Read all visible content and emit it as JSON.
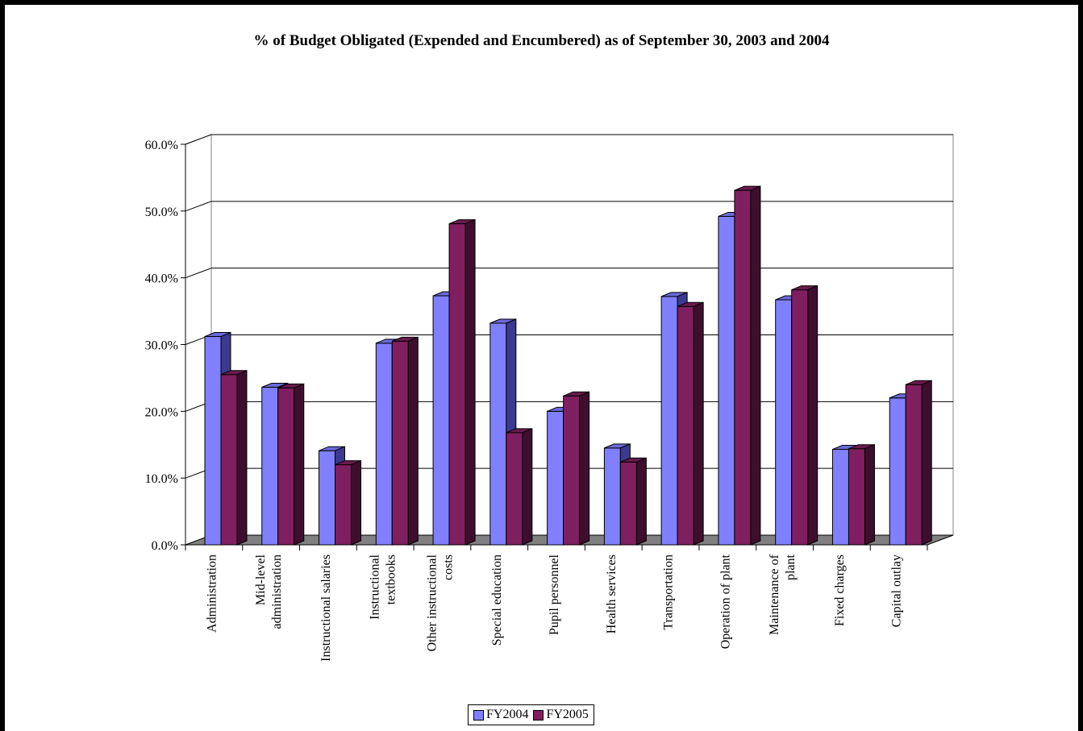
{
  "chart_data": {
    "type": "bar",
    "title": "% of Budget Obligated (Expended and Encumbered) as of September 30, 2003 and 2004",
    "xlabel": "",
    "ylabel": "",
    "ylim": [
      0,
      60
    ],
    "y_ticks": [
      "0.0%",
      "10.0%",
      "20.0%",
      "30.0%",
      "40.0%",
      "50.0%",
      "60.0%"
    ],
    "grid": true,
    "legend_position": "bottom",
    "categories": [
      [
        "Administration"
      ],
      [
        "Mid-level",
        "administration"
      ],
      [
        "Instructional salaries"
      ],
      [
        "Instructional",
        "textbooks"
      ],
      [
        "Other instructional",
        "costs"
      ],
      [
        "Special education"
      ],
      [
        "Pupil personnel"
      ],
      [
        "Health services"
      ],
      [
        "Transportation"
      ],
      [
        "Operation of plant"
      ],
      [
        "Maintenance of",
        "plant"
      ],
      [
        "Fixed charges"
      ],
      [
        "Capital outlay"
      ]
    ],
    "series": [
      {
        "name": "FY2004",
        "color": "#8080ff",
        "values": [
          31.2,
          23.6,
          14.1,
          30.2,
          37.3,
          33.2,
          20.0,
          14.5,
          37.2,
          49.2,
          36.7,
          14.3,
          22.0
        ]
      },
      {
        "name": "FY2005",
        "color": "#801f5f",
        "values": [
          25.5,
          23.5,
          12.0,
          30.5,
          48.1,
          16.8,
          22.3,
          12.4,
          35.7,
          53.1,
          38.2,
          14.4,
          24.0
        ]
      }
    ]
  }
}
